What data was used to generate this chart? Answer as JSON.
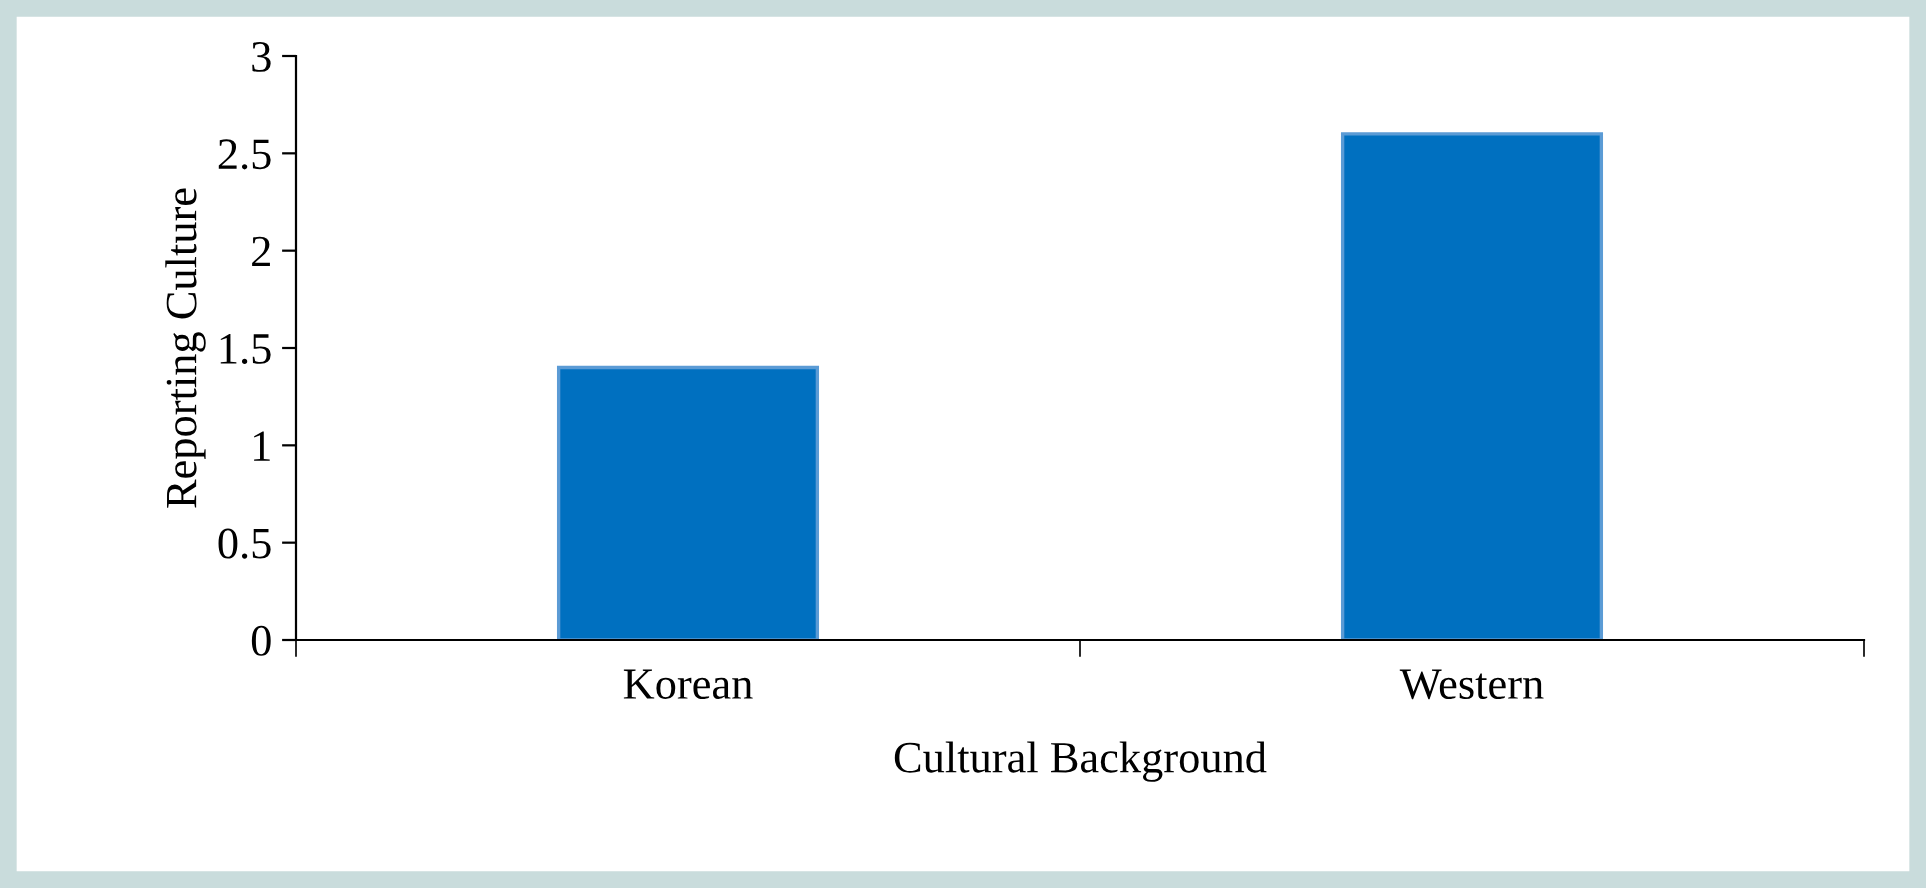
{
  "chart_data": {
    "type": "bar",
    "xlabel": "Cultural Background",
    "ylabel": "Reporting Culture",
    "categories": [
      "Korean",
      "Western"
    ],
    "values": [
      1.4,
      2.6
    ],
    "color": "#0070c0",
    "ylim": [
      0,
      3
    ],
    "yticks": [
      0,
      0.5,
      1,
      1.5,
      2,
      2.5,
      3
    ]
  }
}
